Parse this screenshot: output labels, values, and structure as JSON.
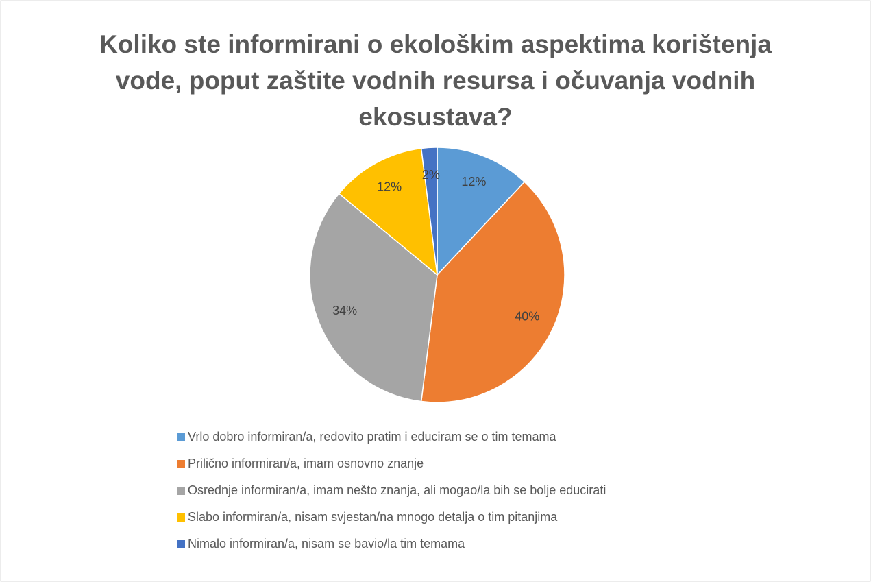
{
  "chart_data": {
    "type": "pie",
    "title": "Koliko ste informirani o ekološkim aspektima korištenja vode, poput zaštite vodnih resursa i očuvanja vodnih ekosustava?",
    "categories": [
      "Vrlo dobro informiran/a, redovito pratim i educiram se o tim temama",
      "Prilično informiran/a, imam osnovno znanje",
      "Osrednje informiran/a, imam nešto znanja, ali mogao/la bih se bolje educirati",
      "Slabo informiran/a, nisam svjestan/na mnogo detalja o tim pitanjima",
      "Nimalo informiran/a, nisam se bavio/la tim temama"
    ],
    "values": [
      12,
      40,
      34,
      12,
      2
    ],
    "value_labels": [
      "12%",
      "40%",
      "34%",
      "12%",
      "2%"
    ],
    "colors": [
      "#5b9bd5",
      "#ed7d31",
      "#a5a5a5",
      "#ffc000",
      "#4472c4"
    ],
    "legend": "bottom"
  }
}
